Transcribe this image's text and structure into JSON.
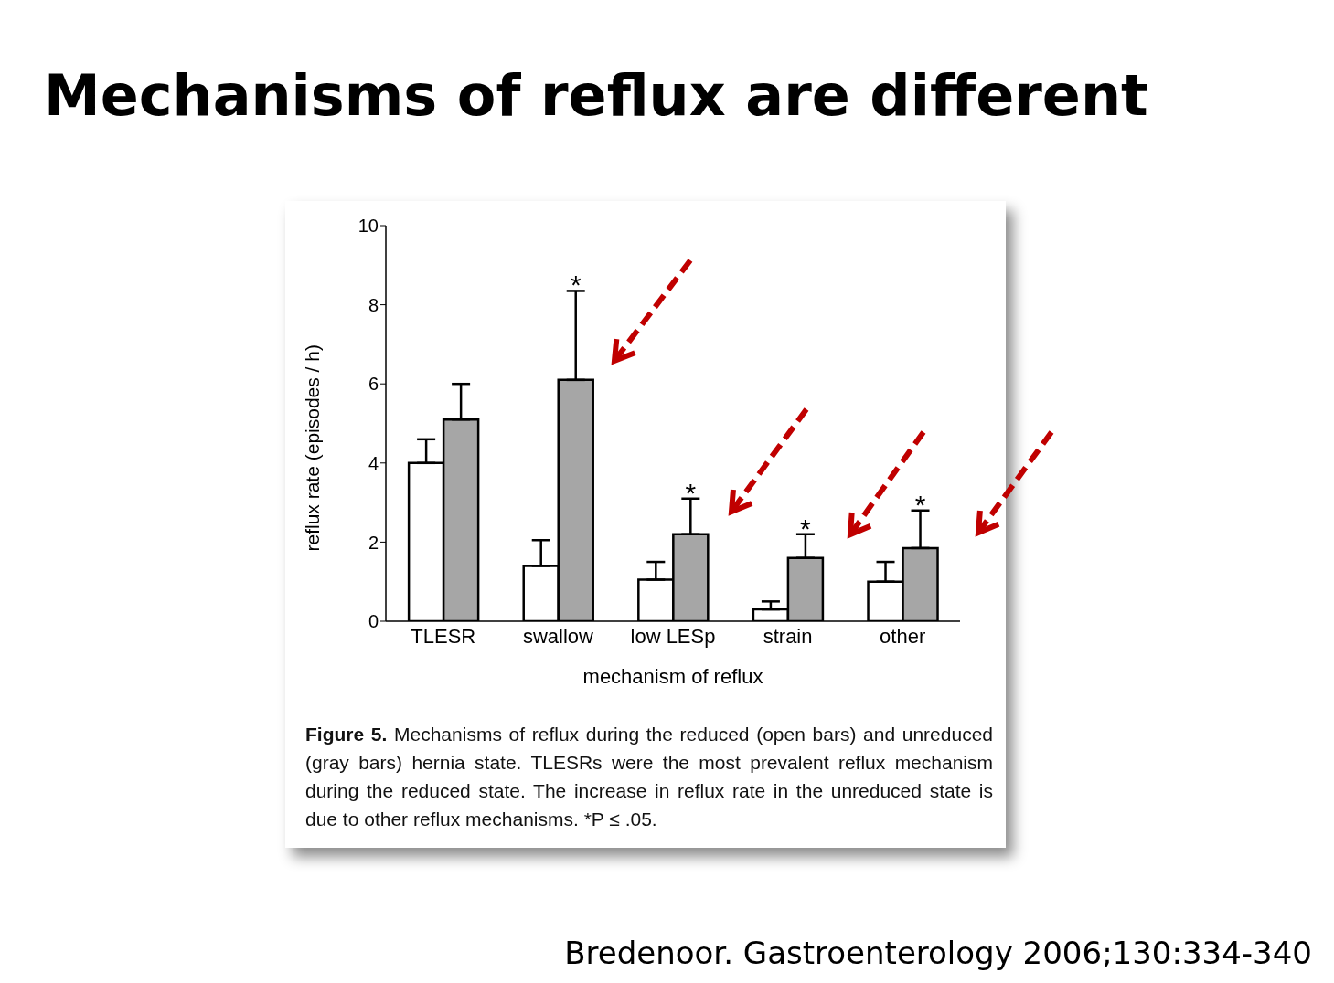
{
  "chart_data": {
    "type": "bar",
    "title": "Mechanisms of reflux are different",
    "categories": [
      "TLESR",
      "swallow",
      "low LESp",
      "strain",
      "other"
    ],
    "series": [
      {
        "color": "#ffffff",
        "values": [
          4.0,
          1.4,
          1.05,
          0.3,
          1.0
        ],
        "errors": [
          [
            4.0,
            4.6
          ],
          [
            1.4,
            2.05
          ],
          [
            1.05,
            1.5
          ],
          [
            0.3,
            0.5
          ],
          [
            1.0,
            1.5
          ]
        ]
      },
      {
        "color": "#a6a6a6",
        "values": [
          5.1,
          6.1,
          2.2,
          1.6,
          1.85
        ],
        "errors": [
          [
            5.1,
            6.0
          ],
          [
            6.1,
            8.35
          ],
          [
            2.2,
            3.1
          ],
          [
            1.6,
            2.2
          ],
          [
            1.85,
            2.8
          ]
        ],
        "value_labels": [
          null,
          "*",
          "*",
          "*",
          "*"
        ]
      }
    ],
    "xlabel": "mechanism of reflux",
    "ylabel": "reflux rate (episodes / h)",
    "ylim": [
      0,
      10
    ],
    "yticks": [
      0,
      2,
      4,
      6,
      8,
      10
    ],
    "grid": false,
    "legend": false,
    "annotations": [
      "Figure 5. Mechanisms of reflux during the reduced (open bars) and unreduced (gray bars) hernia state. TLESRs were the most prevalent reflux mechanism during the reduced state. The increase in reflux rate in the unreduced state is due to other reflux mechanisms. *P ≤ .05.",
      "Bredenoor. Gastroenterology 2006;130:334-340"
    ]
  }
}
